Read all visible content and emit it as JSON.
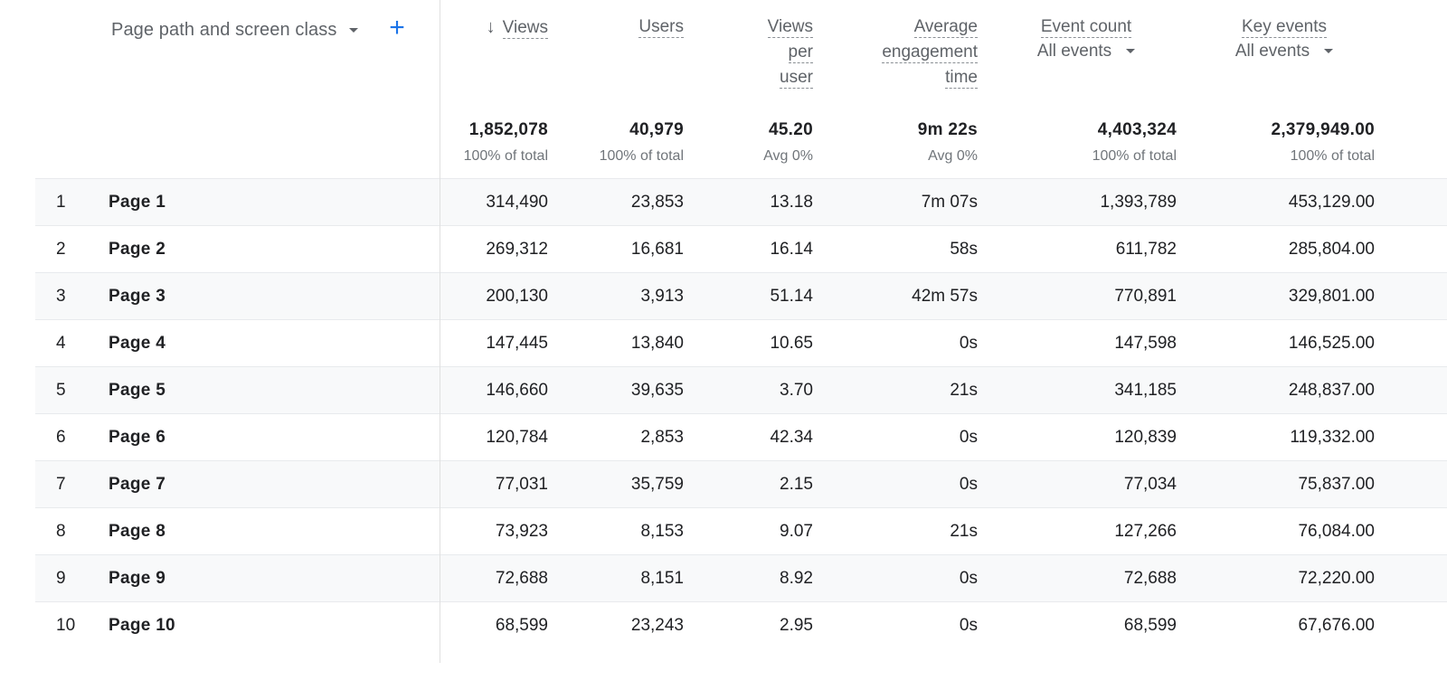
{
  "dimension": {
    "label": "Page path and screen class",
    "add_icon": "+"
  },
  "columns": [
    {
      "key": "views",
      "title_lines": [
        "Views"
      ],
      "sorted": true,
      "sort_icon": "↓"
    },
    {
      "key": "users",
      "title_lines": [
        "Users"
      ]
    },
    {
      "key": "views_per_user",
      "title_lines": [
        "Views",
        "per",
        "user"
      ]
    },
    {
      "key": "avg_engagement",
      "title_lines": [
        "Average",
        "engagement",
        "time"
      ]
    },
    {
      "key": "event_count",
      "title_lines": [
        "Event count"
      ],
      "select": "All events"
    },
    {
      "key": "key_events",
      "title_lines": [
        "Key events"
      ],
      "select": "All events"
    }
  ],
  "totals": [
    {
      "value": "1,852,078",
      "sub": "100% of total"
    },
    {
      "value": "40,979",
      "sub": "100% of total"
    },
    {
      "value": "45.20",
      "sub": "Avg 0%"
    },
    {
      "value": "9m 22s",
      "sub": "Avg 0%"
    },
    {
      "value": "4,403,324",
      "sub": "100% of total"
    },
    {
      "value": "2,379,949.00",
      "sub": "100% of total"
    }
  ],
  "rows": [
    {
      "index": "1",
      "name": "Page 1",
      "values": [
        "314,490",
        "23,853",
        "13.18",
        "7m 07s",
        "1,393,789",
        "453,129.00"
      ]
    },
    {
      "index": "2",
      "name": "Page 2",
      "values": [
        "269,312",
        "16,681",
        "16.14",
        "58s",
        "611,782",
        "285,804.00"
      ]
    },
    {
      "index": "3",
      "name": "Page 3",
      "values": [
        "200,130",
        "3,913",
        "51.14",
        "42m 57s",
        "770,891",
        "329,801.00"
      ]
    },
    {
      "index": "4",
      "name": "Page 4",
      "values": [
        "147,445",
        "13,840",
        "10.65",
        "0s",
        "147,598",
        "146,525.00"
      ]
    },
    {
      "index": "5",
      "name": "Page 5",
      "values": [
        "146,660",
        "39,635",
        "3.70",
        "21s",
        "341,185",
        "248,837.00"
      ]
    },
    {
      "index": "6",
      "name": "Page 6",
      "values": [
        "120,784",
        "2,853",
        "42.34",
        "0s",
        "120,839",
        "119,332.00"
      ]
    },
    {
      "index": "7",
      "name": "Page 7",
      "values": [
        "77,031",
        "35,759",
        "2.15",
        "0s",
        "77,034",
        "75,837.00"
      ]
    },
    {
      "index": "8",
      "name": "Page 8",
      "values": [
        "73,923",
        "8,153",
        "9.07",
        "21s",
        "127,266",
        "76,084.00"
      ]
    },
    {
      "index": "9",
      "name": "Page 9",
      "values": [
        "72,688",
        "8,151",
        "8.92",
        "0s",
        "72,688",
        "72,220.00"
      ]
    },
    {
      "index": "10",
      "name": "Page 10",
      "values": [
        "68,599",
        "23,243",
        "2.95",
        "0s",
        "68,599",
        "67,676.00"
      ]
    }
  ]
}
